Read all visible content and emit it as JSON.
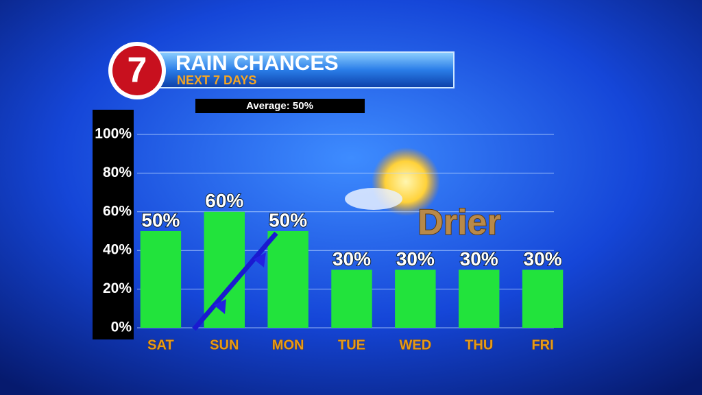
{
  "logo": "7",
  "chart_data": {
    "type": "bar",
    "title": "RAIN CHANCES",
    "subtitle": "NEXT 7 DAYS",
    "annotations": [
      "Average: 50%",
      "Drier"
    ],
    "categories": [
      "SAT",
      "SUN",
      "MON",
      "TUE",
      "WED",
      "THU",
      "FRI"
    ],
    "values": [
      50,
      60,
      50,
      30,
      30,
      30,
      30
    ],
    "value_labels": [
      "50%",
      "60%",
      "50%",
      "30%",
      "30%",
      "30%",
      "30%"
    ],
    "color": "#22e33c",
    "ylim": [
      0,
      100
    ],
    "yticks": [
      {
        "value": 0,
        "label": "0%"
      },
      {
        "value": 20,
        "label": "20%"
      },
      {
        "value": 40,
        "label": "40%"
      },
      {
        "value": 60,
        "label": "60%"
      },
      {
        "value": 80,
        "label": "80%"
      },
      {
        "value": 100,
        "label": "100%"
      }
    ],
    "grid": true
  }
}
